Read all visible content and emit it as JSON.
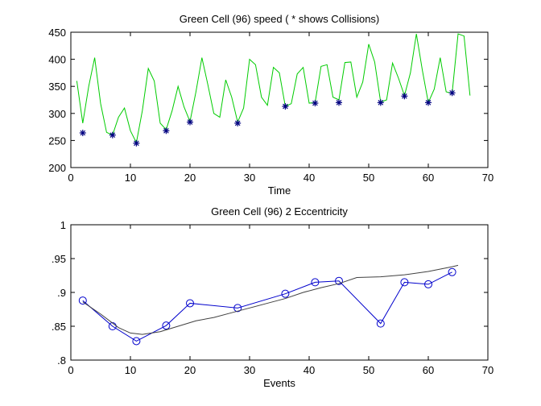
{
  "chart_data": [
    {
      "type": "line",
      "title": "Green Cell (96) speed ( * shows Collisions)",
      "xlabel": "Time",
      "ylabel": "",
      "xlim": [
        0,
        70
      ],
      "ylim": [
        200,
        450
      ],
      "xticks": [
        0,
        10,
        20,
        30,
        40,
        50,
        60,
        70
      ],
      "yticks": [
        200,
        250,
        300,
        350,
        400,
        450
      ],
      "grid": false,
      "series": [
        {
          "color": "#00cc00",
          "marker": "none",
          "x": [
            1,
            2,
            3,
            4,
            5,
            6,
            7,
            8,
            9,
            10,
            11,
            12,
            13,
            14,
            15,
            16,
            17,
            18,
            19,
            20,
            21,
            22,
            23,
            24,
            25,
            26,
            27,
            28,
            29,
            30,
            31,
            32,
            33,
            34,
            35,
            36,
            37,
            38,
            39,
            40,
            41,
            42,
            43,
            44,
            45,
            46,
            47,
            48,
            49,
            50,
            51,
            52,
            53,
            54,
            55,
            56,
            57,
            58,
            59,
            60,
            61,
            62,
            63,
            64,
            65,
            66,
            67
          ],
          "y": [
            360,
            282,
            350,
            403,
            318,
            265,
            260,
            293,
            310,
            268,
            246,
            305,
            383,
            360,
            282,
            270,
            305,
            350,
            312,
            285,
            340,
            403,
            353,
            300,
            293,
            362,
            330,
            284,
            310,
            400,
            390,
            330,
            315,
            385,
            375,
            313,
            318,
            373,
            385,
            319,
            320,
            387,
            390,
            330,
            325,
            394,
            395,
            330,
            358,
            428,
            395,
            321,
            325,
            393,
            365,
            333,
            375,
            447,
            380,
            320,
            345,
            403,
            340,
            337,
            447,
            443,
            333
          ]
        },
        {
          "color": "#000080",
          "marker": "asterisk",
          "x": [
            2,
            7,
            11,
            16,
            20,
            28,
            36,
            41,
            45,
            52,
            56,
            60,
            64
          ],
          "y": [
            264,
            260,
            245,
            268,
            284,
            282,
            313,
            319,
            320,
            320,
            332,
            320,
            338
          ]
        }
      ]
    },
    {
      "type": "line",
      "title": "Green Cell (96) 2 Eccentricity",
      "xlabel": "Events",
      "ylabel": "",
      "xlim": [
        0,
        70
      ],
      "ylim": [
        0.8,
        1
      ],
      "xticks": [
        0,
        10,
        20,
        30,
        40,
        50,
        60,
        70
      ],
      "yticks": [
        0.8,
        0.85,
        0.9,
        0.95,
        1
      ],
      "grid": false,
      "series": [
        {
          "color": "#0000cc",
          "marker": "circle",
          "x": [
            2,
            7,
            11,
            16,
            20,
            28,
            36,
            41,
            45,
            52,
            56,
            60,
            64
          ],
          "y": [
            0.888,
            0.85,
            0.828,
            0.851,
            0.884,
            0.877,
            0.898,
            0.915,
            0.917,
            0.854,
            0.915,
            0.912,
            0.93
          ]
        },
        {
          "color": "#404040",
          "marker": "none",
          "x": [
            2,
            5,
            8,
            10,
            12,
            15,
            18,
            21,
            24,
            27,
            30,
            33,
            36,
            39,
            42,
            45,
            48,
            52,
            56,
            60,
            64,
            65
          ],
          "y": [
            0.886,
            0.868,
            0.848,
            0.84,
            0.838,
            0.842,
            0.85,
            0.858,
            0.863,
            0.87,
            0.877,
            0.884,
            0.891,
            0.9,
            0.907,
            0.913,
            0.922,
            0.923,
            0.926,
            0.931,
            0.938,
            0.94
          ]
        }
      ]
    }
  ]
}
